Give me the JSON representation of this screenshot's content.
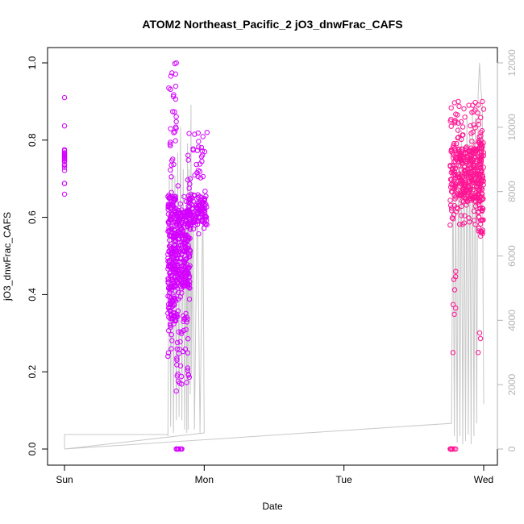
{
  "chart_data": {
    "type": "scatter",
    "title": "ATOM2 Northeast_Pacific_2 jO3_dnwFrac_CAFS",
    "xlabel": "Date",
    "ylabel": "jO3_dnwFrac_CAFS",
    "x_axis": {
      "unit": "day",
      "range": [
        -0.02,
        3.02
      ],
      "ticks": [
        {
          "value": 0,
          "label": "Sun"
        },
        {
          "value": 1,
          "label": "Mon"
        },
        {
          "value": 2,
          "label": "Tue"
        },
        {
          "value": 3,
          "label": "Wed"
        }
      ]
    },
    "y_axis": {
      "range": [
        0,
        1
      ],
      "ticks": [
        "0.0",
        "0.2",
        "0.4",
        "0.6",
        "0.8",
        "1.0"
      ]
    },
    "y2_axis": {
      "range": [
        0,
        12000
      ],
      "color": "#b4b4b4",
      "ticks": [
        "0",
        "2000",
        "4000",
        "6000",
        "8000",
        "10000",
        "12000"
      ]
    },
    "grid": false,
    "legend": "none",
    "series": [
      {
        "color": "#d400ff",
        "marker": "open-circle",
        "axis": "left",
        "clusters": [
          {
            "x": [
              0.0,
              0.0
            ],
            "y": [
              0.66,
              0.91
            ],
            "n": 22,
            "dense": [
              0.72,
              0.78
            ]
          },
          {
            "x": [
              0.74,
              0.8
            ],
            "y": [
              0.24,
              1.0
            ],
            "n": 260,
            "dense": [
              0.33,
              0.66
            ]
          },
          {
            "x": [
              0.8,
              0.9
            ],
            "y": [
              0.15,
              0.7
            ],
            "n": 280,
            "dense": [
              0.42,
              0.62
            ]
          },
          {
            "x": [
              0.88,
              1.02
            ],
            "y": [
              0.55,
              0.82
            ],
            "n": 150,
            "dense": [
              0.58,
              0.66
            ]
          },
          {
            "x": [
              0.8,
              0.84
            ],
            "y": [
              0.0,
              0.0
            ],
            "n": 6,
            "dense": [
              0.0,
              0.0
            ]
          }
        ]
      },
      {
        "color": "#ff1493",
        "marker": "open-circle",
        "axis": "left",
        "clusters": [
          {
            "x": [
              2.76,
              2.8
            ],
            "y": [
              0.0,
              0.0
            ],
            "n": 8,
            "dense": [
              0.0,
              0.0
            ]
          },
          {
            "x": [
              2.78,
              2.8
            ],
            "y": [
              0.25,
              0.46
            ],
            "n": 6,
            "dense": [
              0.3,
              0.46
            ]
          },
          {
            "x": [
              2.76,
              2.99
            ],
            "y": [
              0.58,
              0.9
            ],
            "n": 380,
            "dense": [
              0.64,
              0.78
            ]
          },
          {
            "x": [
              2.96,
              3.0
            ],
            "y": [
              0.25,
              0.88
            ],
            "n": 60,
            "dense": [
              0.55,
              0.8
            ]
          }
        ]
      },
      {
        "color": "#c8c8c8",
        "marker": "line",
        "axis": "right",
        "x": [
          0.0,
          0.0,
          0.74,
          0.74,
          0.75,
          0.76,
          0.77,
          0.78,
          0.79,
          0.8,
          0.81,
          0.82,
          0.83,
          0.84,
          0.85,
          0.86,
          0.87,
          0.875,
          0.88,
          0.885,
          0.89,
          0.9,
          0.905,
          0.91,
          0.92,
          0.93,
          0.95,
          0.97,
          0.99,
          1.0,
          1.0,
          0.0,
          2.77,
          2.78,
          2.79,
          2.8,
          2.81,
          2.82,
          2.83,
          2.84,
          2.85,
          2.86,
          2.87,
          2.88,
          2.89,
          2.9,
          2.91,
          2.92,
          2.93,
          2.94,
          2.95,
          2.96,
          2.97,
          2.98,
          2.99,
          2.995,
          3.0
        ],
        "y": [
          0,
          450,
          450,
          400,
          8500,
          700,
          9000,
          500,
          8500,
          900,
          9200,
          1000,
          10000,
          900,
          8700,
          600,
          7500,
          500,
          9500,
          600,
          8700,
          1700,
          10700,
          2300,
          8000,
          600,
          8000,
          500,
          8000,
          500,
          500,
          0,
          800,
          8800,
          400,
          8200,
          200,
          10000,
          400,
          9900,
          150,
          9300,
          250,
          10400,
          450,
          9800,
          150,
          10500,
          400,
          10300,
          800,
          11000,
          12000,
          11200,
          10700,
          5500,
          1400
        ]
      }
    ]
  }
}
